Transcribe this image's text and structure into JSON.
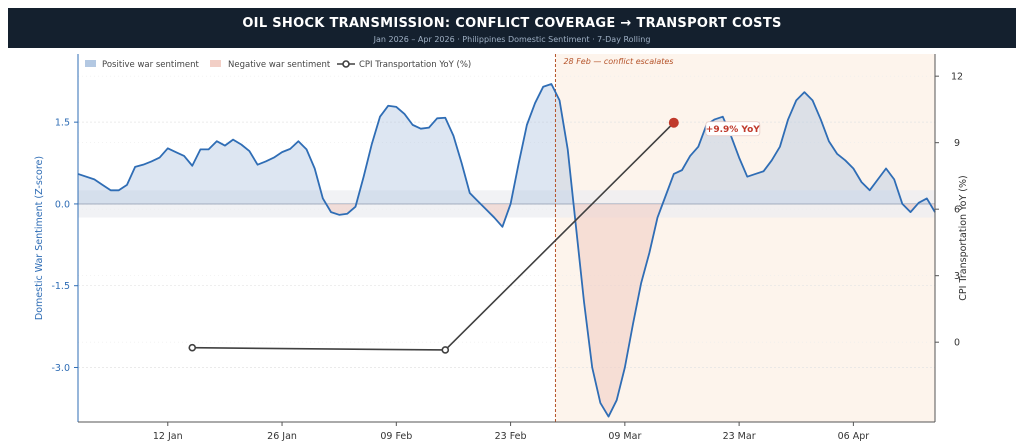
{
  "header": {
    "title": "OIL SHOCK TRANSMISSION: CONFLICT COVERAGE → TRANSPORT COSTS",
    "subtitle": "Jan 2026 – Apr 2026 · Philippines Domestic Sentiment · 7-Day Rolling"
  },
  "chart_data": {
    "type": "area",
    "ylabel_left": "Domestic War Sentiment (Z-score)",
    "ylabel_right": "CPI Transportation YoY (%)",
    "x_tick_labels": [
      "12 Jan",
      "26 Jan",
      "09 Feb",
      "23 Feb",
      "09 Mar",
      "23 Mar",
      "06 Apr"
    ],
    "x_tick_positions": [
      11,
      25,
      39,
      53,
      67,
      81,
      95
    ],
    "xlim": [
      0,
      105
    ],
    "y_left_lim": [
      -4.0,
      2.75
    ],
    "y_left_ticks": [
      -3.0,
      -1.5,
      0.0,
      1.5
    ],
    "y_left_tick_labels": [
      "-3.0",
      "-1.5",
      "0.0",
      "1.5"
    ],
    "y_right_lim": [
      -3.6,
      13.0
    ],
    "y_right_ticks": [
      0,
      3,
      6,
      9,
      12
    ],
    "y_right_tick_labels": [
      "0",
      "3",
      "6",
      "9",
      "12"
    ],
    "neutral_band": [
      -0.25,
      0.25
    ],
    "colors": {
      "sentiment_line": "#2f6db5",
      "positive_fill": "#b3c8e2",
      "negative_fill": "#f2cfc6",
      "cpi_line": "#404040",
      "event_line": "#b5532a",
      "event_shade": "#fdf4ec",
      "last_point": "#c0392b"
    },
    "legend": {
      "placement": "top-left",
      "items": [
        "Positive war sentiment",
        "Negative war sentiment",
        "CPI Transportation YoY (%)"
      ]
    },
    "event": {
      "x": 58.5,
      "label": "28 Feb — conflict escalates"
    },
    "series": [
      {
        "name": "Domestic War Sentiment (Z-score)",
        "x": [
          0,
          2,
          3,
          4,
          5,
          6,
          7,
          8,
          9,
          10,
          11,
          12,
          13,
          14,
          15,
          16,
          17,
          18,
          19,
          20,
          21,
          22,
          23,
          24,
          25,
          26,
          27,
          28,
          29,
          30,
          31,
          32,
          33,
          34,
          35,
          36,
          37,
          38,
          39,
          40,
          41,
          42,
          43,
          44,
          45,
          46,
          47,
          48,
          49,
          50,
          51,
          52,
          53,
          54,
          55,
          56,
          57,
          58,
          59,
          60,
          61,
          62,
          63,
          64,
          65,
          66,
          67,
          68,
          69,
          70,
          71,
          72,
          73,
          74,
          75,
          76,
          77,
          78,
          79,
          80,
          81,
          82,
          83,
          84,
          85,
          86,
          87,
          88,
          89,
          90,
          91,
          92,
          93,
          94,
          95,
          96,
          97,
          98,
          99,
          100,
          101,
          102,
          103,
          104,
          105
        ],
        "values": [
          0.55,
          0.45,
          0.35,
          0.25,
          0.25,
          0.35,
          0.68,
          0.72,
          0.78,
          0.85,
          1.02,
          0.95,
          0.88,
          0.7,
          1.0,
          1.0,
          1.15,
          1.07,
          1.18,
          1.09,
          0.97,
          0.72,
          0.78,
          0.85,
          0.95,
          1.01,
          1.15,
          1.0,
          0.65,
          0.1,
          -0.15,
          -0.2,
          -0.18,
          -0.05,
          0.5,
          1.1,
          1.6,
          1.8,
          1.78,
          1.65,
          1.45,
          1.38,
          1.4,
          1.57,
          1.58,
          1.25,
          0.75,
          0.2,
          0.05,
          -0.1,
          -0.25,
          -0.42,
          0.0,
          0.75,
          1.45,
          1.85,
          2.15,
          2.2,
          1.9,
          1.0,
          -0.4,
          -1.8,
          -3.0,
          -3.65,
          -3.9,
          -3.6,
          -3.0,
          -2.2,
          -1.45,
          -0.9,
          -0.25,
          0.15,
          0.55,
          0.62,
          0.88,
          1.05,
          1.45,
          1.55,
          1.6,
          1.25,
          0.85,
          0.5,
          0.55,
          0.6,
          0.8,
          1.05,
          1.55,
          1.9,
          2.05,
          1.9,
          1.55,
          1.15,
          0.92,
          0.8,
          0.65,
          0.4,
          0.25,
          0.45,
          0.65,
          0.45,
          0.0,
          -0.15,
          0.02,
          0.1,
          -0.15
        ]
      },
      {
        "name": "CPI Transportation YoY (%)",
        "x": [
          14,
          45,
          73
        ],
        "values": [
          -0.25,
          -0.35,
          9.9
        ]
      }
    ],
    "annotations": [
      {
        "text": "+9.9% YoY",
        "x": 73,
        "y": 9.9,
        "axis": "right"
      }
    ]
  }
}
